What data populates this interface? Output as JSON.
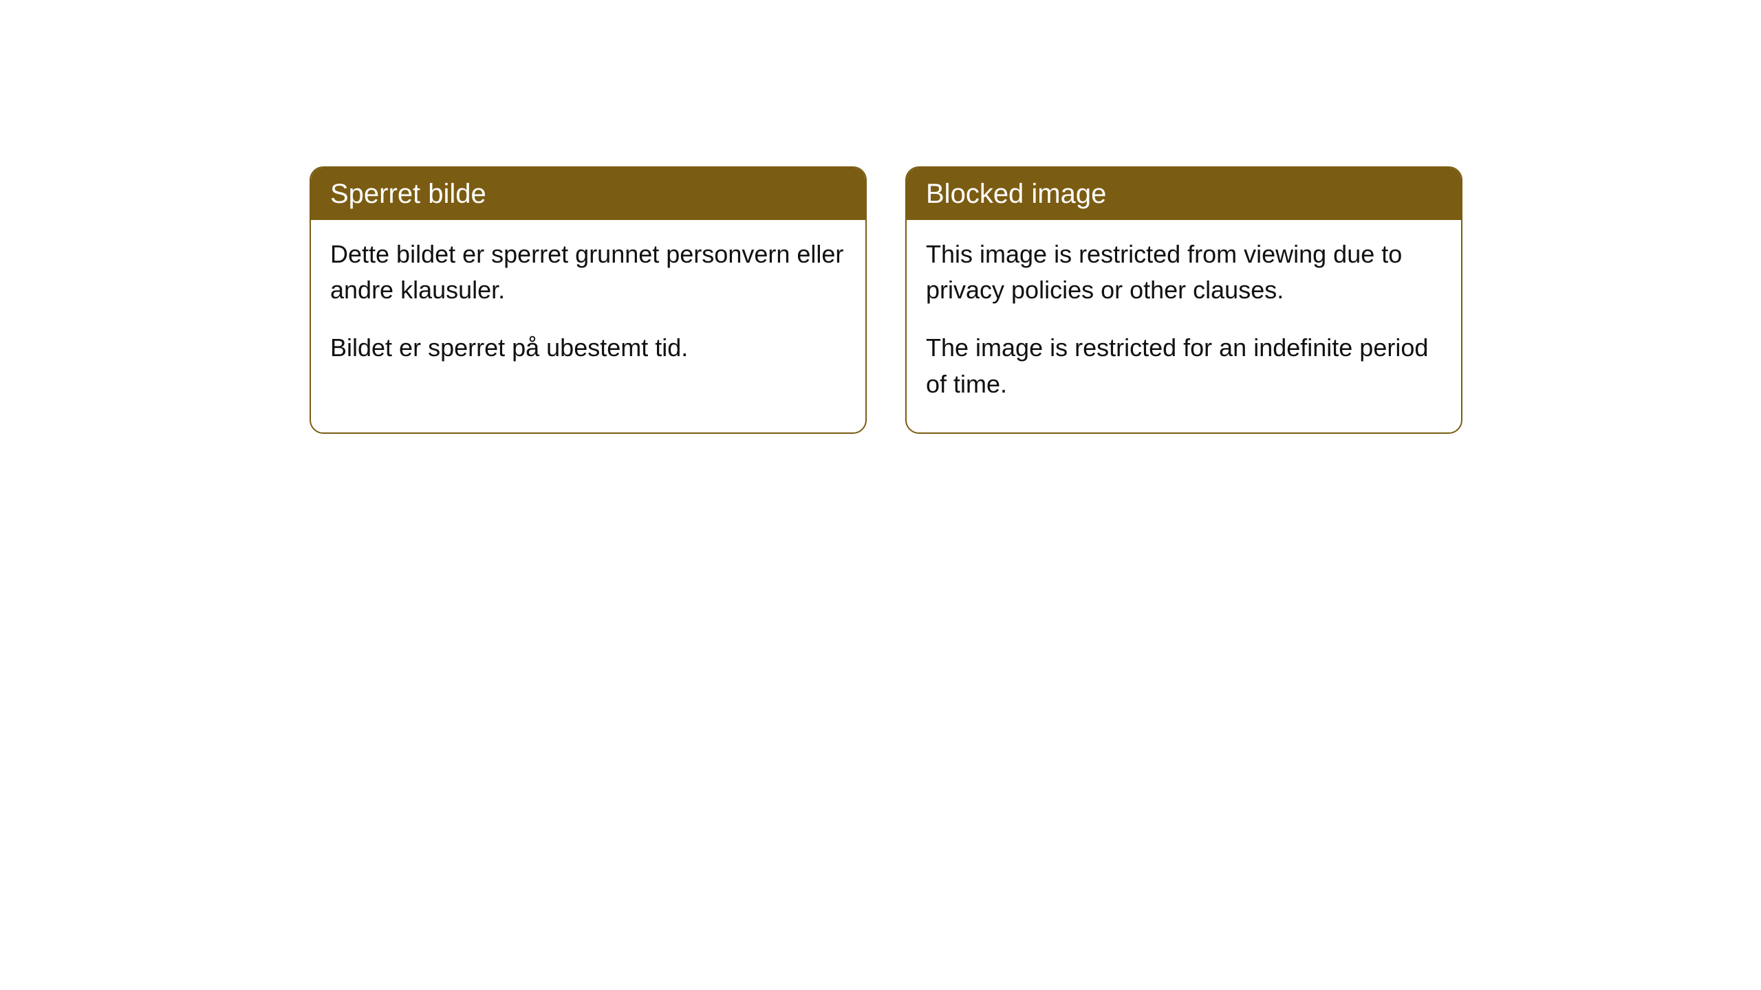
{
  "cards": [
    {
      "title": "Sperret bilde",
      "paragraph1": "Dette bildet er sperret grunnet personvern eller andre klausuler.",
      "paragraph2": "Bildet er sperret på ubestemt tid."
    },
    {
      "title": "Blocked image",
      "paragraph1": "This image is restricted from viewing due to privacy policies or other clauses.",
      "paragraph2": "The image is restricted for an indefinite period of time."
    }
  ],
  "style": {
    "header_bg_color": "#7a5c13",
    "header_text_color": "#ffffff",
    "border_color": "#7a5c13",
    "body_bg_color": "#ffffff",
    "body_text_color": "#111111",
    "border_radius": 20,
    "header_fontsize": 40,
    "body_fontsize": 36
  }
}
